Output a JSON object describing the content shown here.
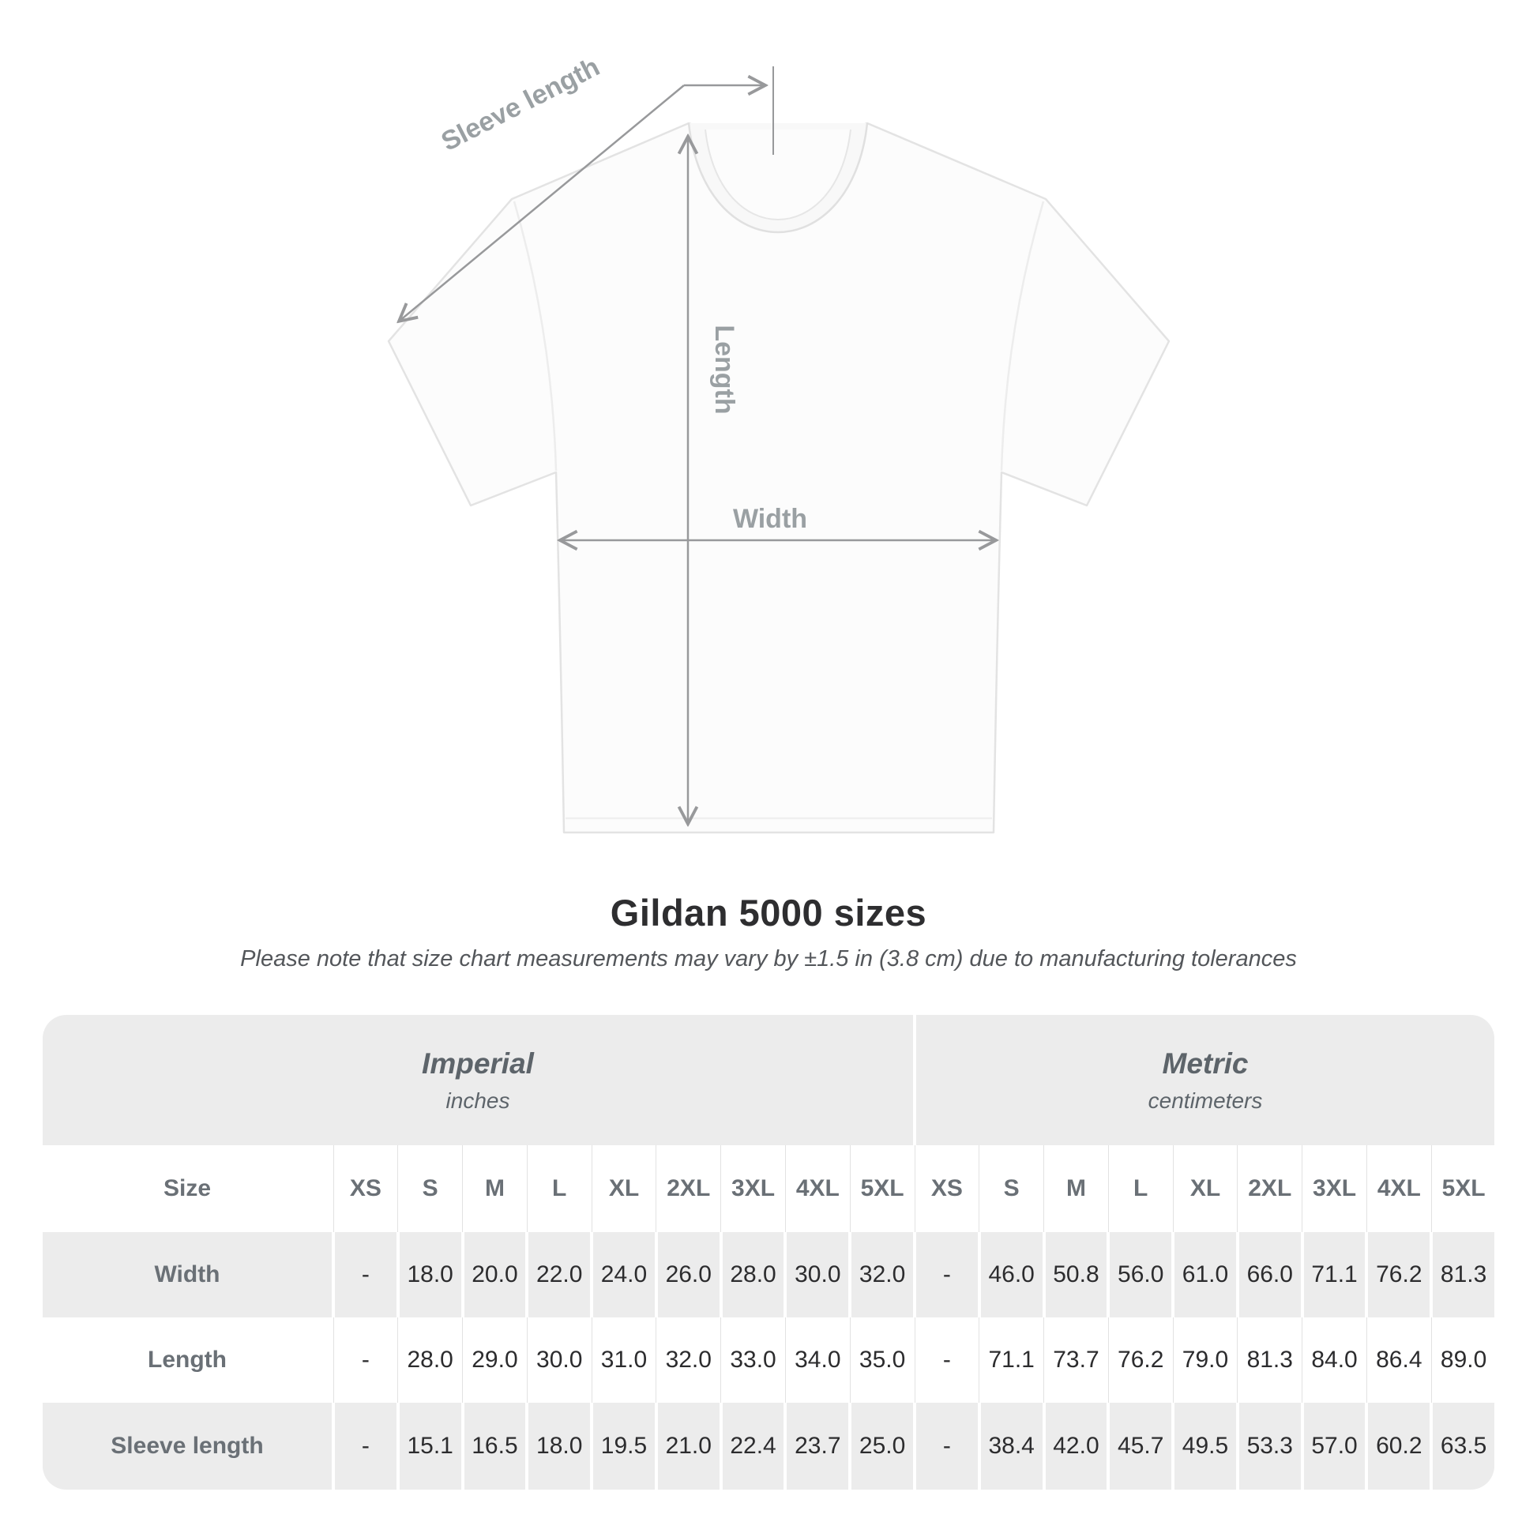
{
  "title": "Gildan 5000 sizes",
  "subtitle": "Please note that size chart measurements may vary by ±1.5 in (3.8 cm) due to manufacturing tolerances",
  "diagram": {
    "sleeve_length_label": "Sleeve length",
    "length_label": "Length",
    "width_label": "Width"
  },
  "colors": {
    "table_band_gray": "#ececec",
    "header_text_gray": "#6a7076",
    "value_text": "#2c2c2e",
    "measure_line_gray": "#98999b",
    "measure_text_gray": "#9aa0a3"
  },
  "chart_data": {
    "type": "table",
    "title": "Gildan 5000 sizes",
    "groups": [
      {
        "label": "Imperial",
        "unit": "inches"
      },
      {
        "label": "Metric",
        "unit": "centimeters"
      }
    ],
    "size_header": "Size",
    "sizes": [
      "XS",
      "S",
      "M",
      "L",
      "XL",
      "2XL",
      "3XL",
      "4XL",
      "5XL"
    ],
    "rows": [
      {
        "label": "Width",
        "imperial": [
          "-",
          "18.0",
          "20.0",
          "22.0",
          "24.0",
          "26.0",
          "28.0",
          "30.0",
          "32.0"
        ],
        "metric": [
          "-",
          "46.0",
          "50.8",
          "56.0",
          "61.0",
          "66.0",
          "71.1",
          "76.2",
          "81.3"
        ]
      },
      {
        "label": "Length",
        "imperial": [
          "-",
          "28.0",
          "29.0",
          "30.0",
          "31.0",
          "32.0",
          "33.0",
          "34.0",
          "35.0"
        ],
        "metric": [
          "-",
          "71.1",
          "73.7",
          "76.2",
          "79.0",
          "81.3",
          "84.0",
          "86.4",
          "89.0"
        ]
      },
      {
        "label": "Sleeve length",
        "imperial": [
          "-",
          "15.1",
          "16.5",
          "18.0",
          "19.5",
          "21.0",
          "22.4",
          "23.7",
          "25.0"
        ],
        "metric": [
          "-",
          "38.4",
          "42.0",
          "45.7",
          "49.5",
          "53.3",
          "57.0",
          "60.2",
          "63.5"
        ]
      }
    ]
  }
}
